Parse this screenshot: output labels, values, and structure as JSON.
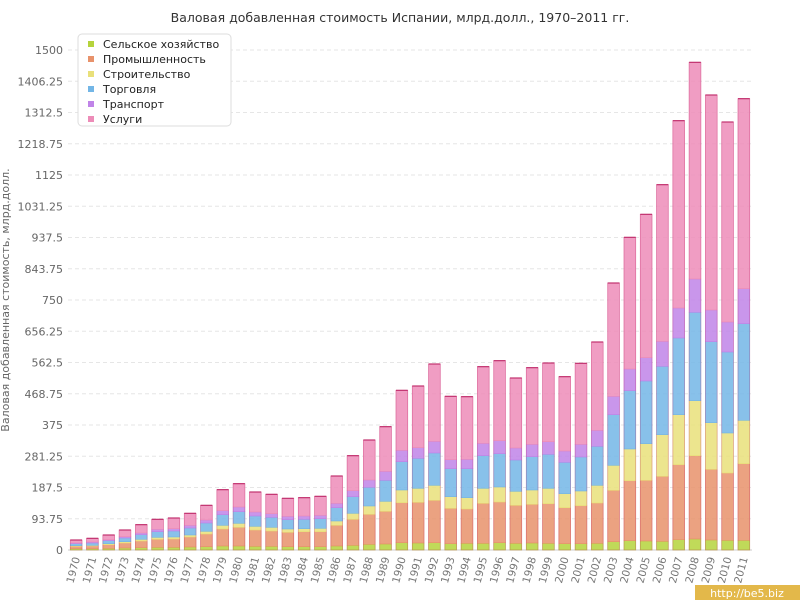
{
  "chart_data": {
    "type": "bar",
    "stacked": true,
    "title": "Валовая добавленная стоимость Испании, млрд.долл., 1970–2011 гг.",
    "ylabel": "Валовая добавленная стоимость, млрд.долл.",
    "xlabel": "",
    "ylim": [
      0,
      1500
    ],
    "yticks": [
      "0",
      "93.75",
      "187.5",
      "281.25",
      "375",
      "468.75",
      "562.5",
      "656.25",
      "750",
      "843.75",
      "937.5",
      "1031.25",
      "1125",
      "1218.75",
      "1312.5",
      "1406.25",
      "1500"
    ],
    "grid": true,
    "legend_position": "top-left",
    "categories": [
      "1970",
      "1971",
      "1972",
      "1973",
      "1974",
      "1975",
      "1976",
      "1977",
      "1978",
      "1979",
      "1980",
      "1981",
      "1982",
      "1983",
      "1984",
      "1985",
      "1986",
      "1987",
      "1988",
      "1989",
      "1990",
      "1991",
      "1992",
      "1993",
      "1994",
      "1995",
      "1996",
      "1997",
      "1998",
      "1999",
      "2000",
      "2001",
      "2002",
      "2003",
      "2004",
      "2005",
      "2006",
      "2007",
      "2008",
      "2009",
      "2010",
      "2011"
    ],
    "series": [
      {
        "name": "Сельское хозяйство",
        "color": "#b5d33c",
        "values": [
          4,
          4,
          5,
          6,
          7,
          8,
          8,
          9,
          10,
          12,
          12,
          11,
          11,
          10,
          10,
          10,
          12,
          14,
          17,
          18,
          22,
          21,
          22,
          19,
          20,
          20,
          22,
          20,
          21,
          20,
          19,
          19,
          20,
          25,
          28,
          27,
          26,
          31,
          33,
          30,
          29,
          29
        ]
      },
      {
        "name": "Промышленность",
        "color": "#e8926b",
        "values": [
          7,
          8,
          11,
          15,
          20,
          24,
          25,
          30,
          38,
          51,
          56,
          49,
          46,
          43,
          45,
          45,
          62,
          78,
          90,
          98,
          120,
          122,
          127,
          106,
          103,
          120,
          122,
          114,
          116,
          119,
          108,
          114,
          121,
          154,
          180,
          182,
          195,
          225,
          250,
          212,
          202,
          230
        ]
      },
      {
        "name": "Строительство",
        "color": "#e9e07a",
        "values": [
          2,
          2,
          3,
          4,
          5,
          6,
          6,
          6,
          8,
          11,
          12,
          11,
          11,
          10,
          9,
          10,
          13,
          18,
          25,
          30,
          38,
          42,
          45,
          35,
          34,
          45,
          45,
          42,
          43,
          46,
          42,
          44,
          53,
          75,
          95,
          110,
          125,
          150,
          165,
          140,
          120,
          130
        ]
      },
      {
        "name": "Торговля",
        "color": "#73b6e6",
        "values": [
          6,
          7,
          9,
          11,
          14,
          17,
          18,
          21,
          25,
          32,
          35,
          31,
          30,
          28,
          28,
          29,
          40,
          50,
          56,
          63,
          85,
          90,
          97,
          84,
          87,
          98,
          100,
          94,
          100,
          102,
          94,
          102,
          117,
          152,
          175,
          188,
          205,
          230,
          265,
          243,
          243,
          290
        ]
      },
      {
        "name": "Транспорт",
        "color": "#c084e8",
        "values": [
          2,
          3,
          3,
          4,
          5,
          7,
          7,
          8,
          9,
          12,
          14,
          12,
          11,
          10,
          10,
          10,
          13,
          18,
          22,
          27,
          34,
          32,
          35,
          27,
          28,
          37,
          39,
          36,
          37,
          38,
          34,
          38,
          48,
          55,
          65,
          70,
          75,
          90,
          100,
          95,
          90,
          105
        ]
      },
      {
        "name": "Услуги",
        "color": "#ed8cb8",
        "values": [
          9,
          11,
          14,
          20,
          25,
          30,
          32,
          36,
          44,
          63,
          70,
          60,
          58,
          54,
          55,
          57,
          82,
          105,
          120,
          134,
          180,
          185,
          232,
          190,
          188,
          230,
          240,
          210,
          230,
          236,
          223,
          243,
          265,
          340,
          395,
          430,
          470,
          562,
          650,
          645,
          600,
          570
        ]
      }
    ]
  },
  "watermark": "http://be5.biz"
}
